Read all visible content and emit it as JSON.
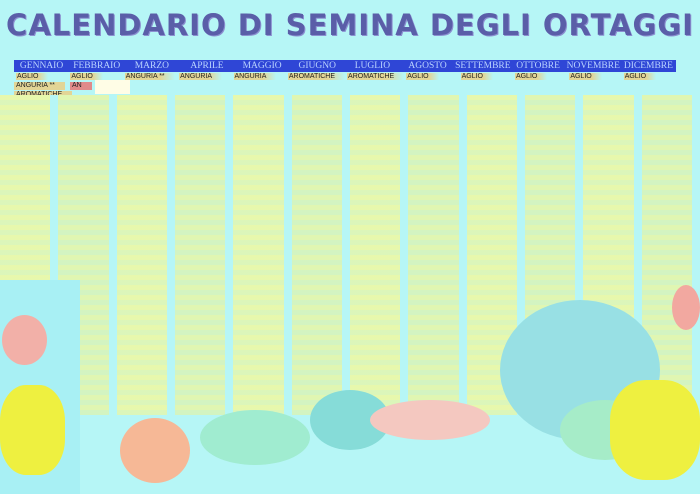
{
  "title": "CALENDARIO DI SEMINA DEGLI ORTAGGI",
  "months": [
    "GENNAIO",
    "FEBBRAIO",
    "MARZO",
    "APRILE",
    "MAGGIO",
    "GIUGNO",
    "LUGLIO",
    "AGOSTO",
    "SETTEMBRE",
    "OTTOBRE",
    "NOVEMBRE",
    "DICEMBRE"
  ],
  "first_row": [
    "AGLIO",
    "AGLIO",
    "ANGURIA **",
    "ANGURIA",
    "ANGURIA",
    "AROMATICHE",
    "AROMATICHE",
    "AGLIO",
    "AGLIO",
    "AGLIO",
    "AGLIO",
    "AGLIO"
  ],
  "gennaio_extra": [
    "ANGURIA **",
    "AROMATICHE"
  ],
  "febbraio_extra": "AN",
  "colors": {
    "title": "#5a5ea8",
    "header_bg": "#2f46d6",
    "header_text": "#b9d3ff",
    "cell_bg": "#e2d596",
    "background": "#b6f6f6"
  }
}
